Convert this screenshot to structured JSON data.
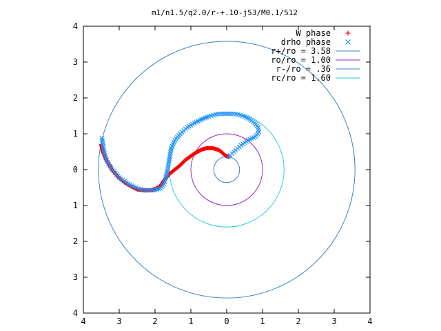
{
  "chart_data": {
    "type": "scatter",
    "title": "m1/n1.5/q2.0/r-+.10-j53/M0.1/512",
    "xlabel": "",
    "ylabel": "",
    "xlim": [
      -4,
      4
    ],
    "ylim": [
      -4,
      4
    ],
    "x_tick_labels": [
      "4",
      "3",
      "2",
      "1",
      "0",
      "1",
      "2",
      "3",
      "4"
    ],
    "y_tick_labels": [
      "4",
      "3",
      "2",
      "1",
      "0",
      "1",
      "2",
      "3",
      "4"
    ],
    "grid": false,
    "legend_position": "top-right",
    "legend": [
      {
        "label": "W phase",
        "symbol": "+",
        "color": "#ff0000"
      },
      {
        "label": "drho phase",
        "symbol": "x",
        "color": "#1e90ff"
      },
      {
        "label": "r+/ro = 3.58",
        "symbol": "line",
        "color": "#3a80c8"
      },
      {
        "label": "ro/ro = 1.00",
        "symbol": "line",
        "color": "#a020c0"
      },
      {
        "label": "r-/ro = .36",
        "symbol": "line",
        "color": "#3a80c8"
      },
      {
        "label": "rc/ro = 1.60",
        "symbol": "line",
        "color": "#20d0d8"
      }
    ],
    "circles": [
      {
        "label": "r+/ro = 3.58",
        "radius": 3.58,
        "color": "#3a80c8"
      },
      {
        "label": "ro/ro = 1.00",
        "radius": 1.0,
        "color": "#a020c0"
      },
      {
        "label": "r-/ro = .36",
        "radius": 0.36,
        "color": "#3a80c8"
      },
      {
        "label": "rc/ro = 1.60",
        "radius": 1.6,
        "color": "#20d0d8"
      }
    ],
    "series": [
      {
        "name": "W phase",
        "symbol": "+",
        "color": "#ff0000",
        "points": [
          [
            0.05,
            0.36
          ],
          [
            -0.05,
            0.4
          ],
          [
            -0.15,
            0.5
          ],
          [
            -0.25,
            0.56
          ],
          [
            -0.4,
            0.6
          ],
          [
            -0.55,
            0.6
          ],
          [
            -0.7,
            0.56
          ],
          [
            -0.85,
            0.48
          ],
          [
            -1.0,
            0.38
          ],
          [
            -1.15,
            0.27
          ],
          [
            -1.3,
            0.12
          ],
          [
            -1.45,
            0.0
          ],
          [
            -1.6,
            -0.12
          ],
          [
            -1.75,
            -0.3
          ],
          [
            -1.85,
            -0.45
          ],
          [
            -1.95,
            -0.52
          ],
          [
            -2.1,
            -0.57
          ],
          [
            -2.3,
            -0.58
          ],
          [
            -2.5,
            -0.55
          ],
          [
            -2.7,
            -0.45
          ],
          [
            -2.9,
            -0.32
          ],
          [
            -3.05,
            -0.18
          ],
          [
            -3.2,
            0.0
          ],
          [
            -3.35,
            0.25
          ],
          [
            -3.45,
            0.48
          ],
          [
            -3.5,
            0.7
          ]
        ]
      },
      {
        "name": "drho phase",
        "symbol": "x",
        "color": "#1e90ff",
        "points": [
          [
            0.05,
            0.35
          ],
          [
            0.2,
            0.5
          ],
          [
            0.4,
            0.68
          ],
          [
            0.6,
            0.82
          ],
          [
            0.8,
            0.92
          ],
          [
            0.9,
            1.05
          ],
          [
            0.88,
            1.18
          ],
          [
            0.78,
            1.3
          ],
          [
            0.65,
            1.4
          ],
          [
            0.5,
            1.48
          ],
          [
            0.32,
            1.54
          ],
          [
            0.12,
            1.56
          ],
          [
            -0.1,
            1.56
          ],
          [
            -0.3,
            1.54
          ],
          [
            -0.5,
            1.48
          ],
          [
            -0.7,
            1.4
          ],
          [
            -0.9,
            1.3
          ],
          [
            -1.1,
            1.18
          ],
          [
            -1.3,
            1.0
          ],
          [
            -1.45,
            0.82
          ],
          [
            -1.55,
            0.6
          ],
          [
            -1.6,
            0.3
          ],
          [
            -1.65,
            0.0
          ],
          [
            -1.7,
            -0.22
          ],
          [
            -1.75,
            -0.4
          ],
          [
            -1.85,
            -0.52
          ],
          [
            -2.0,
            -0.57
          ],
          [
            -2.2,
            -0.58
          ],
          [
            -2.4,
            -0.55
          ],
          [
            -2.6,
            -0.48
          ],
          [
            -2.8,
            -0.36
          ],
          [
            -3.0,
            -0.22
          ],
          [
            -3.15,
            -0.05
          ],
          [
            -3.3,
            0.15
          ],
          [
            -3.4,
            0.4
          ],
          [
            -3.45,
            0.65
          ],
          [
            -3.48,
            0.88
          ]
        ]
      }
    ]
  }
}
